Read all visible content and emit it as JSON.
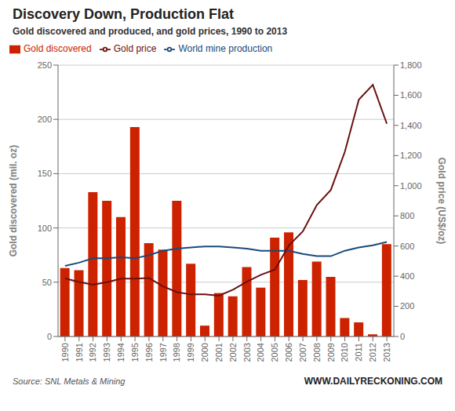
{
  "chart_data": {
    "type": "bar",
    "title": "Discovery Down, Production Flat",
    "subtitle": "Gold discovered and produced, and gold prices, 1990 to 2013",
    "categories": [
      1990,
      1991,
      1992,
      1993,
      1994,
      1995,
      1996,
      1997,
      1998,
      1999,
      2000,
      2001,
      2002,
      2003,
      2004,
      2005,
      2006,
      2007,
      2008,
      2009,
      2010,
      2011,
      2012,
      2013
    ],
    "series": [
      {
        "name": "Gold discovered",
        "type": "bar",
        "color": "#cc2200",
        "values": [
          63,
          61,
          133,
          125,
          110,
          193,
          86,
          80,
          125,
          67,
          10,
          40,
          37,
          64,
          45,
          91,
          96,
          52,
          69,
          55,
          17,
          13,
          2,
          85
        ]
      },
      {
        "name": "World mine production",
        "type": "line",
        "color": "#1a4a7a",
        "values": [
          65,
          68,
          72,
          72,
          73,
          72,
          75,
          79,
          81,
          82,
          83,
          83,
          82,
          81,
          79,
          79,
          79,
          76,
          74,
          74,
          79,
          82,
          84,
          87
        ]
      },
      {
        "name": "Gold price",
        "type": "line",
        "color": "#6b1010",
        "axis": "y2",
        "values": [
          385,
          362,
          344,
          360,
          384,
          384,
          388,
          332,
          294,
          279,
          279,
          271,
          310,
          363,
          409,
          444,
          604,
          697,
          872,
          972,
          1225,
          1571,
          1669,
          1411
        ]
      }
    ],
    "ylabel": "Gold discovered (mil. oz)",
    "y2label": "Gold price (US$/oz)",
    "ylim": [
      0,
      250
    ],
    "yticks": [
      0,
      50,
      100,
      150,
      200,
      250
    ],
    "y2lim": [
      0,
      1800
    ],
    "y2ticks": [
      0,
      200,
      400,
      600,
      800,
      {
        "value": 1000,
        "label": "1,000"
      },
      {
        "value": 1200,
        "label": "1,200"
      },
      {
        "value": 1400,
        "label": "1,400"
      },
      {
        "value": 1600,
        "label": "1,600"
      },
      {
        "value": 1800,
        "label": "1,800"
      }
    ],
    "grid": true,
    "legend": "upper left",
    "annotations": [
      "Source: SNL Metals & Mining",
      "WWW.DAILYRECKONING.COM"
    ]
  }
}
